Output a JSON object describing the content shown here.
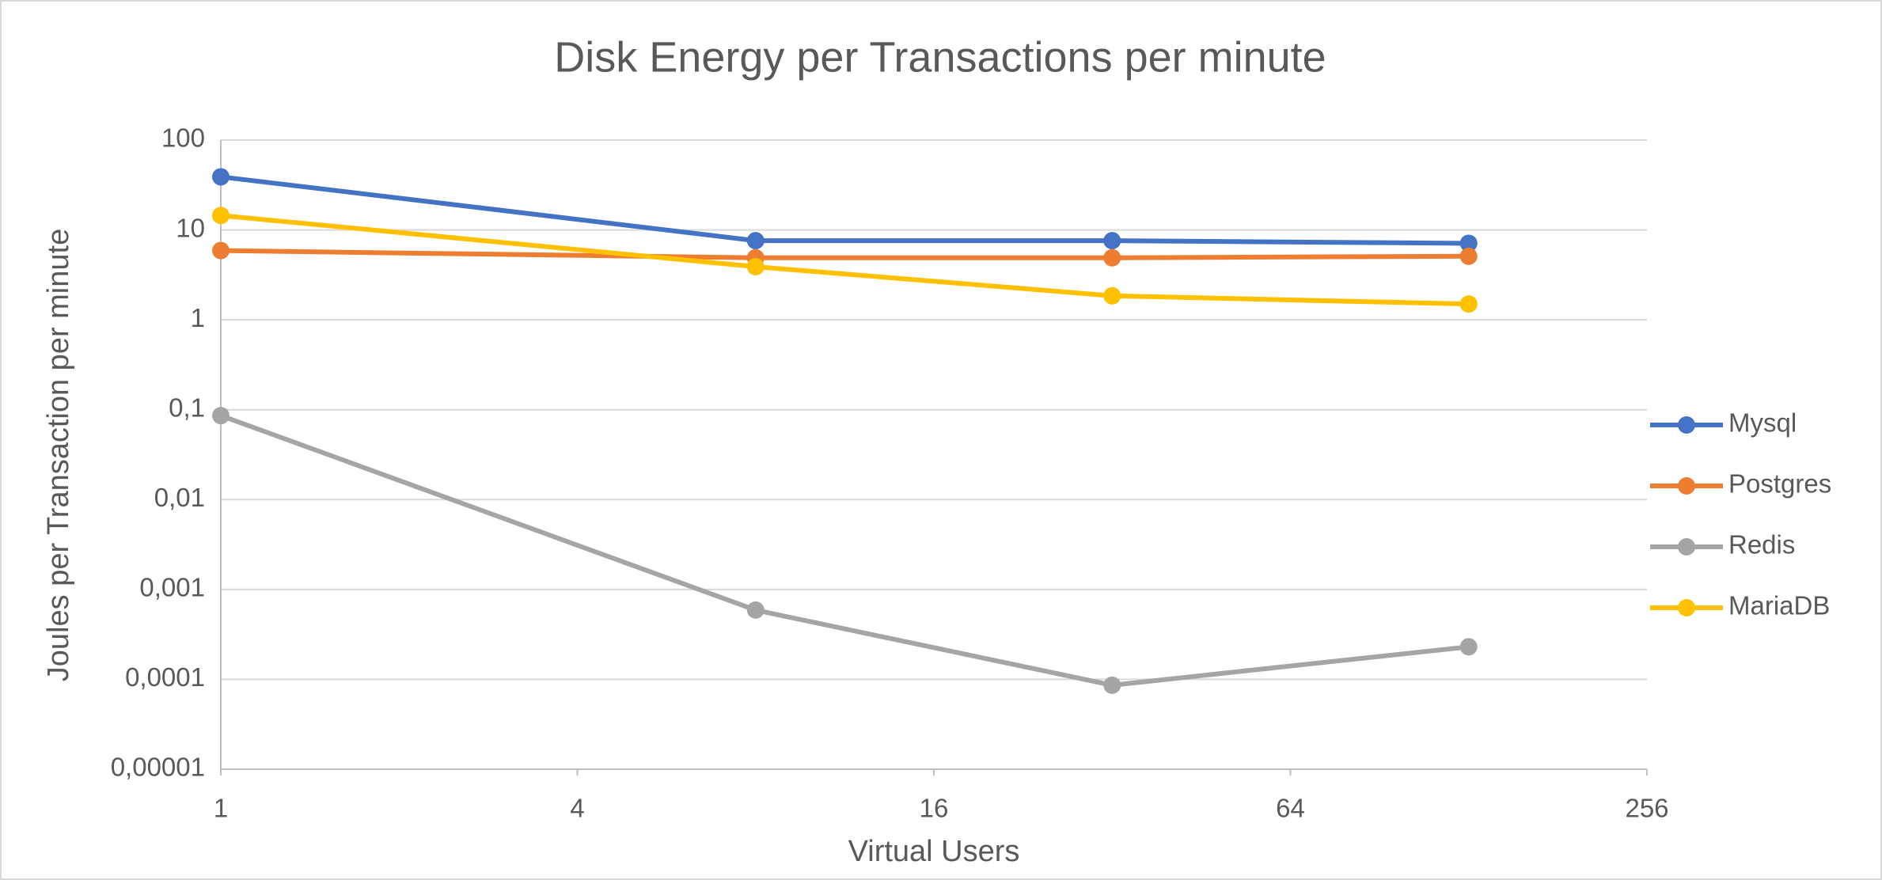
{
  "chart_data": {
    "type": "line",
    "title": "Disk Energy per Transactions per minute",
    "x_label": "Virtual Users",
    "y_label": "Joules per Transaction per minute",
    "x": [
      1,
      8,
      32,
      128
    ],
    "series": [
      {
        "name": "Mysql",
        "color": "#4472c4",
        "values": [
          39,
          7.6,
          7.6,
          7.1
        ]
      },
      {
        "name": "Postgres",
        "color": "#ed7d31",
        "values": [
          5.9,
          4.9,
          4.9,
          5.1
        ]
      },
      {
        "name": "Redis",
        "color": "#a5a5a5",
        "values": [
          0.086,
          0.00059,
          8.6e-05,
          0.00023
        ]
      },
      {
        "name": "MariaDB",
        "color": "#ffc000",
        "values": [
          14.5,
          3.9,
          1.85,
          1.5
        ]
      }
    ],
    "xlog": true,
    "ylog": true,
    "xlim": [
      1,
      256
    ],
    "xticks": [
      1,
      4,
      16,
      64,
      256
    ],
    "ylim": [
      1e-05,
      100
    ],
    "yticks": [
      {
        "value": 1e-05,
        "label": "0,00001"
      },
      {
        "value": 0.0001,
        "label": "0,0001"
      },
      {
        "value": 0.001,
        "label": "0,001"
      },
      {
        "value": 0.01,
        "label": "0,01"
      },
      {
        "value": 0.1,
        "label": "0,1"
      },
      1,
      10,
      100
    ],
    "grid": true,
    "legend": "right"
  }
}
